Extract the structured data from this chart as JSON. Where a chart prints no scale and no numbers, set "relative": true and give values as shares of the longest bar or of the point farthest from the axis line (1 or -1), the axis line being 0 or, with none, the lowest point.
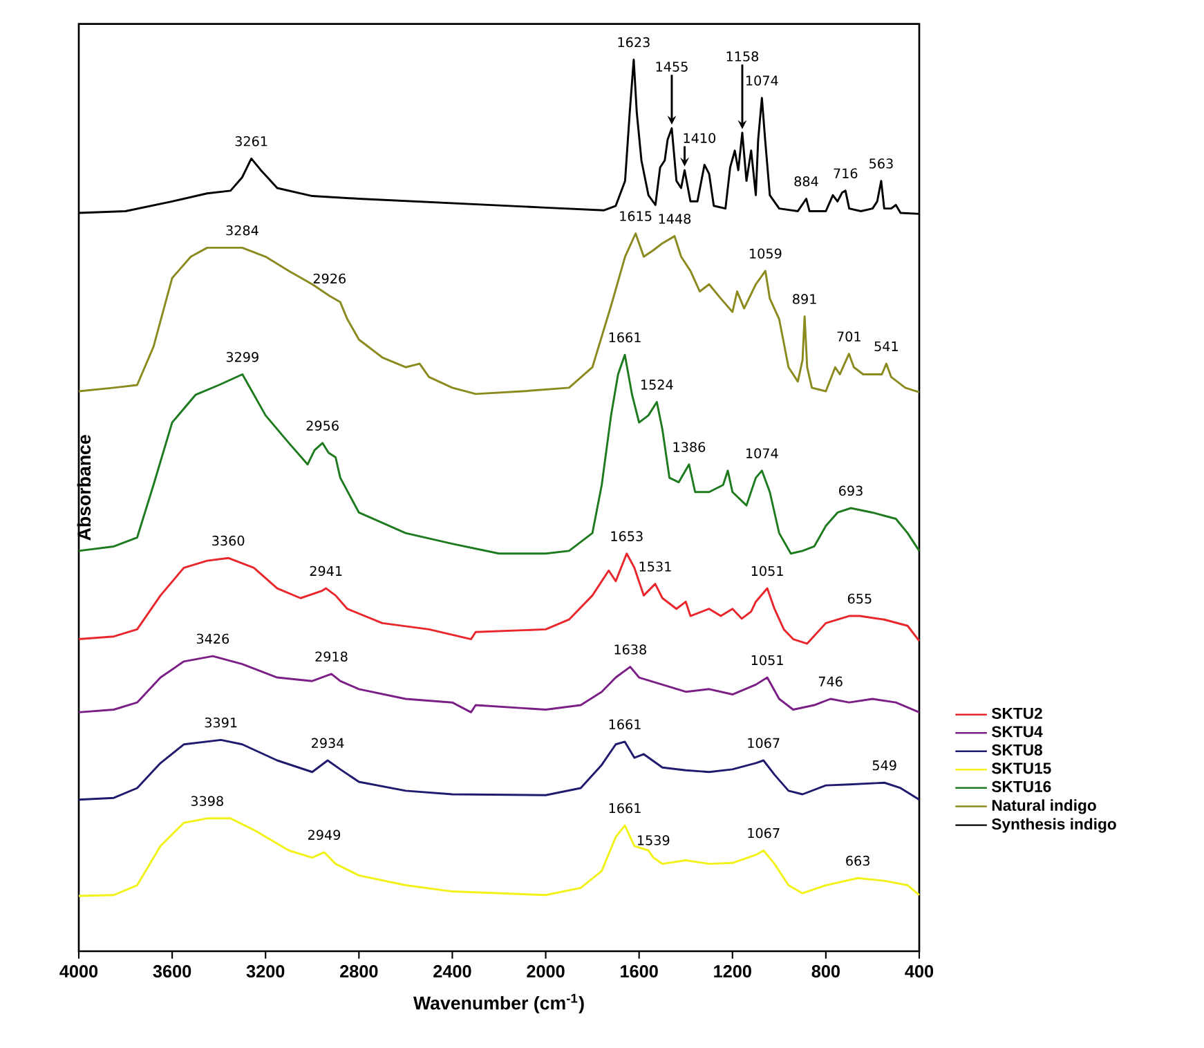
{
  "chart_data": {
    "type": "line",
    "relative": true,
    "xlabel": "Wavenumber (cm$^{-1}$)",
    "ylabel": "Absorbance",
    "xlim": [
      4000,
      400
    ],
    "xticks": [
      4000,
      3600,
      3200,
      2800,
      2400,
      2000,
      1600,
      1200,
      800,
      400
    ],
    "marker": "none",
    "legend": "right",
    "series": [
      {
        "name": "SKTU2",
        "color": "#e8262b",
        "x": [
          4000,
          3850,
          3750,
          3650,
          3550,
          3450,
          3360,
          3250,
          3150,
          3050,
          2960,
          2941,
          2900,
          2850,
          2700,
          2500,
          2320,
          2300,
          2000,
          1900,
          1800,
          1730,
          1700,
          1653,
          1620,
          1580,
          1531,
          1500,
          1440,
          1400,
          1380,
          1300,
          1250,
          1200,
          1160,
          1120,
          1100,
          1051,
          1020,
          980,
          940,
          880,
          800,
          700,
          655,
          550,
          450,
          400
        ],
        "values": [
          0.35,
          0.353,
          0.361,
          0.399,
          0.43,
          0.438,
          0.441,
          0.43,
          0.407,
          0.396,
          0.404,
          0.407,
          0.399,
          0.384,
          0.368,
          0.361,
          0.35,
          0.358,
          0.361,
          0.372,
          0.399,
          0.427,
          0.415,
          0.446,
          0.43,
          0.399,
          0.412,
          0.396,
          0.384,
          0.392,
          0.376,
          0.384,
          0.376,
          0.384,
          0.373,
          0.381,
          0.392,
          0.407,
          0.384,
          0.361,
          0.35,
          0.345,
          0.368,
          0.376,
          0.376,
          0.372,
          0.365,
          0.348
        ]
      },
      {
        "name": "SKTU4",
        "color": "#7b1f86",
        "x": [
          4000,
          3850,
          3750,
          3650,
          3550,
          3426,
          3300,
          3150,
          3000,
          2918,
          2880,
          2800,
          2600,
          2400,
          2320,
          2300,
          2000,
          1850,
          1760,
          1700,
          1638,
          1600,
          1500,
          1400,
          1300,
          1200,
          1100,
          1051,
          1000,
          940,
          850,
          780,
          700,
          600,
          500,
          400
        ],
        "values": [
          0.268,
          0.271,
          0.279,
          0.307,
          0.325,
          0.331,
          0.322,
          0.307,
          0.303,
          0.311,
          0.303,
          0.294,
          0.283,
          0.279,
          0.268,
          0.276,
          0.271,
          0.276,
          0.291,
          0.307,
          0.319,
          0.307,
          0.299,
          0.291,
          0.294,
          0.288,
          0.299,
          0.307,
          0.283,
          0.271,
          0.276,
          0.283,
          0.279,
          0.283,
          0.279,
          0.268
        ]
      },
      {
        "name": "SKTU8",
        "color": "#1f1a6e",
        "x": [
          4000,
          3850,
          3750,
          3650,
          3550,
          3391,
          3300,
          3150,
          3000,
          2934,
          2880,
          2800,
          2600,
          2400,
          2000,
          1850,
          1760,
          1700,
          1661,
          1620,
          1580,
          1500,
          1400,
          1300,
          1200,
          1100,
          1067,
          1020,
          960,
          900,
          800,
          700,
          549,
          480,
          400
        ],
        "values": [
          0.17,
          0.172,
          0.183,
          0.211,
          0.232,
          0.237,
          0.232,
          0.214,
          0.201,
          0.214,
          0.204,
          0.19,
          0.18,
          0.176,
          0.175,
          0.183,
          0.209,
          0.232,
          0.235,
          0.217,
          0.221,
          0.206,
          0.203,
          0.201,
          0.204,
          0.211,
          0.214,
          0.198,
          0.18,
          0.176,
          0.186,
          0.187,
          0.189,
          0.183,
          0.17
        ]
      },
      {
        "name": "SKTU15",
        "color": "#f2f21a",
        "x": [
          4000,
          3850,
          3750,
          3650,
          3550,
          3450,
          3350,
          3250,
          3100,
          3000,
          2949,
          2900,
          2800,
          2600,
          2400,
          2000,
          1850,
          1760,
          1700,
          1661,
          1620,
          1560,
          1539,
          1500,
          1400,
          1300,
          1200,
          1100,
          1067,
          1020,
          960,
          900,
          800,
          663,
          550,
          450,
          400
        ],
        "values": [
          0.062,
          0.063,
          0.074,
          0.118,
          0.144,
          0.149,
          0.149,
          0.136,
          0.113,
          0.105,
          0.111,
          0.098,
          0.085,
          0.074,
          0.067,
          0.063,
          0.071,
          0.09,
          0.128,
          0.141,
          0.118,
          0.113,
          0.105,
          0.098,
          0.102,
          0.098,
          0.099,
          0.108,
          0.113,
          0.098,
          0.074,
          0.065,
          0.074,
          0.082,
          0.079,
          0.074,
          0.063
        ]
      },
      {
        "name": "SKTU16",
        "color": "#1e7a1e",
        "x": [
          4000,
          3850,
          3750,
          3680,
          3600,
          3500,
          3400,
          3299,
          3200,
          3100,
          3020,
          2990,
          2956,
          2930,
          2900,
          2880,
          2800,
          2600,
          2400,
          2200,
          2000,
          1900,
          1800,
          1760,
          1720,
          1690,
          1661,
          1630,
          1600,
          1560,
          1524,
          1500,
          1470,
          1430,
          1386,
          1360,
          1300,
          1240,
          1220,
          1200,
          1140,
          1100,
          1074,
          1040,
          1000,
          950,
          900,
          850,
          800,
          750,
          693,
          600,
          500,
          450,
          400
        ],
        "values": [
          0.449,
          0.454,
          0.464,
          0.523,
          0.593,
          0.624,
          0.635,
          0.647,
          0.601,
          0.57,
          0.546,
          0.562,
          0.57,
          0.559,
          0.554,
          0.531,
          0.492,
          0.469,
          0.457,
          0.446,
          0.446,
          0.449,
          0.469,
          0.523,
          0.601,
          0.647,
          0.669,
          0.624,
          0.593,
          0.601,
          0.616,
          0.585,
          0.531,
          0.526,
          0.546,
          0.515,
          0.515,
          0.523,
          0.539,
          0.515,
          0.5,
          0.531,
          0.539,
          0.515,
          0.469,
          0.446,
          0.449,
          0.454,
          0.477,
          0.492,
          0.497,
          0.492,
          0.485,
          0.469,
          0.449
        ]
      },
      {
        "name": "Natural indigo",
        "color": "#8a8a1e",
        "x": [
          4000,
          3850,
          3750,
          3680,
          3600,
          3520,
          3450,
          3300,
          3200,
          3100,
          3000,
          2926,
          2880,
          2850,
          2800,
          2700,
          2600,
          2540,
          2500,
          2400,
          2300,
          2100,
          1900,
          1800,
          1720,
          1660,
          1615,
          1580,
          1540,
          1500,
          1448,
          1420,
          1380,
          1340,
          1300,
          1250,
          1200,
          1180,
          1150,
          1100,
          1059,
          1040,
          1000,
          960,
          920,
          900,
          891,
          880,
          860,
          800,
          760,
          740,
          720,
          701,
          680,
          640,
          560,
          541,
          520,
          460,
          400
        ],
        "values": [
          0.628,
          0.632,
          0.635,
          0.678,
          0.755,
          0.779,
          0.789,
          0.789,
          0.779,
          0.763,
          0.748,
          0.735,
          0.728,
          0.709,
          0.686,
          0.666,
          0.655,
          0.659,
          0.644,
          0.632,
          0.625,
          0.628,
          0.632,
          0.655,
          0.724,
          0.779,
          0.805,
          0.779,
          0.786,
          0.794,
          0.802,
          0.779,
          0.763,
          0.74,
          0.748,
          0.732,
          0.717,
          0.74,
          0.721,
          0.748,
          0.763,
          0.732,
          0.709,
          0.655,
          0.639,
          0.663,
          0.712,
          0.655,
          0.632,
          0.628,
          0.655,
          0.647,
          0.659,
          0.67,
          0.655,
          0.647,
          0.647,
          0.659,
          0.644,
          0.632,
          0.627
        ]
      },
      {
        "name": "Synthesis indigo",
        "color": "#000000",
        "x": [
          4000,
          3800,
          3600,
          3450,
          3350,
          3300,
          3261,
          3220,
          3150,
          3000,
          2800,
          2400,
          2000,
          1750,
          1700,
          1660,
          1640,
          1623,
          1610,
          1590,
          1560,
          1530,
          1510,
          1490,
          1478,
          1460,
          1440,
          1420,
          1405,
          1380,
          1350,
          1320,
          1300,
          1280,
          1230,
          1210,
          1190,
          1175,
          1158,
          1140,
          1120,
          1100,
          1090,
          1074,
          1060,
          1040,
          1000,
          920,
          884,
          870,
          800,
          770,
          750,
          730,
          716,
          700,
          650,
          600,
          580,
          563,
          550,
          520,
          500,
          480,
          400
        ],
        "values": [
          0.828,
          0.83,
          0.841,
          0.85,
          0.853,
          0.868,
          0.889,
          0.876,
          0.856,
          0.847,
          0.844,
          0.839,
          0.834,
          0.831,
          0.836,
          0.864,
          0.941,
          1,
          0.941,
          0.887,
          0.848,
          0.837,
          0.879,
          0.887,
          0.91,
          0.923,
          0.864,
          0.856,
          0.876,
          0.841,
          0.841,
          0.882,
          0.872,
          0.836,
          0.833,
          0.879,
          0.898,
          0.876,
          0.918,
          0.864,
          0.898,
          0.848,
          0.91,
          0.957,
          0.91,
          0.848,
          0.833,
          0.83,
          0.844,
          0.83,
          0.83,
          0.848,
          0.841,
          0.851,
          0.853,
          0.833,
          0.83,
          0.833,
          0.841,
          0.864,
          0.833,
          0.833,
          0.837,
          0.828,
          0.827
        ]
      }
    ],
    "annotations": [
      {
        "text": "3261",
        "x": 3261,
        "y": 0.889
      },
      {
        "text": "1623",
        "x": 1623,
        "y": 1
      },
      {
        "text": "1455",
        "x": 1460,
        "y": 0.923
      },
      {
        "text": "1410",
        "x": 1405,
        "y": 0.876
      },
      {
        "text": "1158",
        "x": 1158,
        "y": 0.918
      },
      {
        "text": "1074",
        "x": 1074,
        "y": 0.957
      },
      {
        "text": "884",
        "x": 884,
        "y": 0.844
      },
      {
        "text": "716",
        "x": 716,
        "y": 0.853
      },
      {
        "text": "563",
        "x": 563,
        "y": 0.864
      },
      {
        "text": "3284",
        "x": 3300,
        "y": 0.789
      },
      {
        "text": "2926",
        "x": 2926,
        "y": 0.735
      },
      {
        "text": "1615",
        "x": 1615,
        "y": 0.805
      },
      {
        "text": "1448",
        "x": 1448,
        "y": 0.802
      },
      {
        "text": "1059",
        "x": 1059,
        "y": 0.763
      },
      {
        "text": "891",
        "x": 891,
        "y": 0.712
      },
      {
        "text": "701",
        "x": 701,
        "y": 0.67
      },
      {
        "text": "541",
        "x": 541,
        "y": 0.659
      },
      {
        "text": "3299",
        "x": 3299,
        "y": 0.647
      },
      {
        "text": "2956",
        "x": 2956,
        "y": 0.57
      },
      {
        "text": "1661",
        "x": 1661,
        "y": 0.669
      },
      {
        "text": "1524",
        "x": 1524,
        "y": 0.616
      },
      {
        "text": "1386",
        "x": 1386,
        "y": 0.546
      },
      {
        "text": "1074",
        "x": 1074,
        "y": 0.539
      },
      {
        "text": "693",
        "x": 693,
        "y": 0.497
      },
      {
        "text": "3360",
        "x": 3360,
        "y": 0.441
      },
      {
        "text": "2941",
        "x": 2941,
        "y": 0.407
      },
      {
        "text": "1653",
        "x": 1653,
        "y": 0.446
      },
      {
        "text": "1531",
        "x": 1531,
        "y": 0.412
      },
      {
        "text": "1051",
        "x": 1051,
        "y": 0.407
      },
      {
        "text": "655",
        "x": 655,
        "y": 0.376
      },
      {
        "text": "3426",
        "x": 3426,
        "y": 0.331
      },
      {
        "text": "2918",
        "x": 2918,
        "y": 0.311
      },
      {
        "text": "1638",
        "x": 1638,
        "y": 0.319
      },
      {
        "text": "1051",
        "x": 1051,
        "y": 0.307
      },
      {
        "text": "746",
        "x": 780,
        "y": 0.283
      },
      {
        "text": "3391",
        "x": 3391,
        "y": 0.237
      },
      {
        "text": "2934",
        "x": 2934,
        "y": 0.214
      },
      {
        "text": "1661",
        "x": 1661,
        "y": 0.235
      },
      {
        "text": "1067",
        "x": 1067,
        "y": 0.214
      },
      {
        "text": "549",
        "x": 549,
        "y": 0.189
      },
      {
        "text": "3398",
        "x": 3450,
        "y": 0.149
      },
      {
        "text": "2949",
        "x": 2949,
        "y": 0.111
      },
      {
        "text": "1661",
        "x": 1661,
        "y": 0.141
      },
      {
        "text": "1539",
        "x": 1539,
        "y": 0.105
      },
      {
        "text": "1067",
        "x": 1067,
        "y": 0.113
      },
      {
        "text": "663",
        "x": 663,
        "y": 0.082
      }
    ]
  }
}
